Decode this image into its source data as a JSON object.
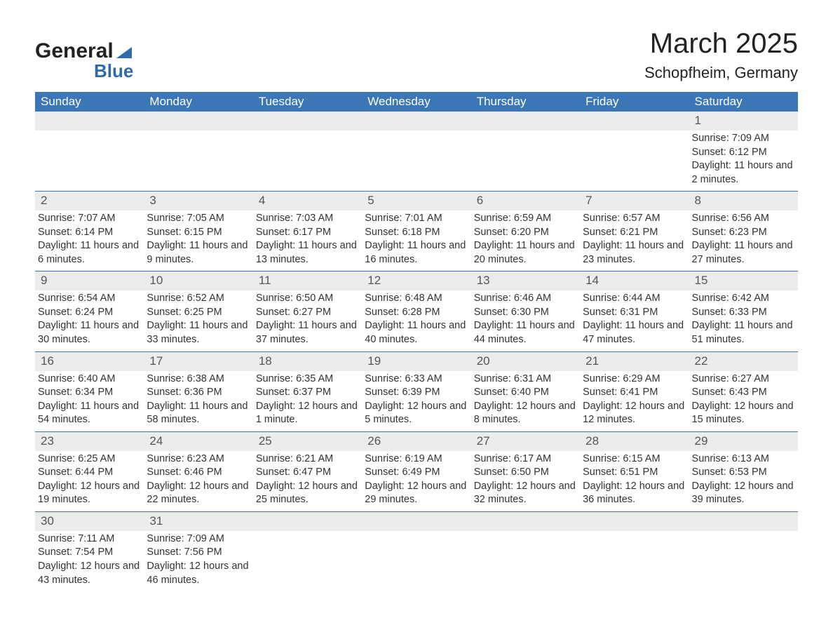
{
  "logo": {
    "line1": "General",
    "line2": "Blue"
  },
  "title": "March 2025",
  "location": "Schopfheim, Germany",
  "colors": {
    "header_bg": "#3b77b7",
    "header_text": "#ffffff",
    "row_divider": "#3b77b7",
    "daynum_bg": "#ececec",
    "text": "#333333",
    "logo_accent": "#2f6aab",
    "background": "#ffffff"
  },
  "typography": {
    "title_fontsize": 40,
    "location_fontsize": 22,
    "weekday_fontsize": 17,
    "daynum_fontsize": 17,
    "cell_fontsize": 14.5
  },
  "layout": {
    "columns": 7,
    "weeks": 6
  },
  "columns": [
    "Sunday",
    "Monday",
    "Tuesday",
    "Wednesday",
    "Thursday",
    "Friday",
    "Saturday"
  ],
  "weeks": [
    [
      null,
      null,
      null,
      null,
      null,
      null,
      {
        "n": "1",
        "sr": "Sunrise: 7:09 AM",
        "ss": "Sunset: 6:12 PM",
        "dl": "Daylight: 11 hours and 2 minutes."
      }
    ],
    [
      {
        "n": "2",
        "sr": "Sunrise: 7:07 AM",
        "ss": "Sunset: 6:14 PM",
        "dl": "Daylight: 11 hours and 6 minutes."
      },
      {
        "n": "3",
        "sr": "Sunrise: 7:05 AM",
        "ss": "Sunset: 6:15 PM",
        "dl": "Daylight: 11 hours and 9 minutes."
      },
      {
        "n": "4",
        "sr": "Sunrise: 7:03 AM",
        "ss": "Sunset: 6:17 PM",
        "dl": "Daylight: 11 hours and 13 minutes."
      },
      {
        "n": "5",
        "sr": "Sunrise: 7:01 AM",
        "ss": "Sunset: 6:18 PM",
        "dl": "Daylight: 11 hours and 16 minutes."
      },
      {
        "n": "6",
        "sr": "Sunrise: 6:59 AM",
        "ss": "Sunset: 6:20 PM",
        "dl": "Daylight: 11 hours and 20 minutes."
      },
      {
        "n": "7",
        "sr": "Sunrise: 6:57 AM",
        "ss": "Sunset: 6:21 PM",
        "dl": "Daylight: 11 hours and 23 minutes."
      },
      {
        "n": "8",
        "sr": "Sunrise: 6:56 AM",
        "ss": "Sunset: 6:23 PM",
        "dl": "Daylight: 11 hours and 27 minutes."
      }
    ],
    [
      {
        "n": "9",
        "sr": "Sunrise: 6:54 AM",
        "ss": "Sunset: 6:24 PM",
        "dl": "Daylight: 11 hours and 30 minutes."
      },
      {
        "n": "10",
        "sr": "Sunrise: 6:52 AM",
        "ss": "Sunset: 6:25 PM",
        "dl": "Daylight: 11 hours and 33 minutes."
      },
      {
        "n": "11",
        "sr": "Sunrise: 6:50 AM",
        "ss": "Sunset: 6:27 PM",
        "dl": "Daylight: 11 hours and 37 minutes."
      },
      {
        "n": "12",
        "sr": "Sunrise: 6:48 AM",
        "ss": "Sunset: 6:28 PM",
        "dl": "Daylight: 11 hours and 40 minutes."
      },
      {
        "n": "13",
        "sr": "Sunrise: 6:46 AM",
        "ss": "Sunset: 6:30 PM",
        "dl": "Daylight: 11 hours and 44 minutes."
      },
      {
        "n": "14",
        "sr": "Sunrise: 6:44 AM",
        "ss": "Sunset: 6:31 PM",
        "dl": "Daylight: 11 hours and 47 minutes."
      },
      {
        "n": "15",
        "sr": "Sunrise: 6:42 AM",
        "ss": "Sunset: 6:33 PM",
        "dl": "Daylight: 11 hours and 51 minutes."
      }
    ],
    [
      {
        "n": "16",
        "sr": "Sunrise: 6:40 AM",
        "ss": "Sunset: 6:34 PM",
        "dl": "Daylight: 11 hours and 54 minutes."
      },
      {
        "n": "17",
        "sr": "Sunrise: 6:38 AM",
        "ss": "Sunset: 6:36 PM",
        "dl": "Daylight: 11 hours and 58 minutes."
      },
      {
        "n": "18",
        "sr": "Sunrise: 6:35 AM",
        "ss": "Sunset: 6:37 PM",
        "dl": "Daylight: 12 hours and 1 minute."
      },
      {
        "n": "19",
        "sr": "Sunrise: 6:33 AM",
        "ss": "Sunset: 6:39 PM",
        "dl": "Daylight: 12 hours and 5 minutes."
      },
      {
        "n": "20",
        "sr": "Sunrise: 6:31 AM",
        "ss": "Sunset: 6:40 PM",
        "dl": "Daylight: 12 hours and 8 minutes."
      },
      {
        "n": "21",
        "sr": "Sunrise: 6:29 AM",
        "ss": "Sunset: 6:41 PM",
        "dl": "Daylight: 12 hours and 12 minutes."
      },
      {
        "n": "22",
        "sr": "Sunrise: 6:27 AM",
        "ss": "Sunset: 6:43 PM",
        "dl": "Daylight: 12 hours and 15 minutes."
      }
    ],
    [
      {
        "n": "23",
        "sr": "Sunrise: 6:25 AM",
        "ss": "Sunset: 6:44 PM",
        "dl": "Daylight: 12 hours and 19 minutes."
      },
      {
        "n": "24",
        "sr": "Sunrise: 6:23 AM",
        "ss": "Sunset: 6:46 PM",
        "dl": "Daylight: 12 hours and 22 minutes."
      },
      {
        "n": "25",
        "sr": "Sunrise: 6:21 AM",
        "ss": "Sunset: 6:47 PM",
        "dl": "Daylight: 12 hours and 25 minutes."
      },
      {
        "n": "26",
        "sr": "Sunrise: 6:19 AM",
        "ss": "Sunset: 6:49 PM",
        "dl": "Daylight: 12 hours and 29 minutes."
      },
      {
        "n": "27",
        "sr": "Sunrise: 6:17 AM",
        "ss": "Sunset: 6:50 PM",
        "dl": "Daylight: 12 hours and 32 minutes."
      },
      {
        "n": "28",
        "sr": "Sunrise: 6:15 AM",
        "ss": "Sunset: 6:51 PM",
        "dl": "Daylight: 12 hours and 36 minutes."
      },
      {
        "n": "29",
        "sr": "Sunrise: 6:13 AM",
        "ss": "Sunset: 6:53 PM",
        "dl": "Daylight: 12 hours and 39 minutes."
      }
    ],
    [
      {
        "n": "30",
        "sr": "Sunrise: 7:11 AM",
        "ss": "Sunset: 7:54 PM",
        "dl": "Daylight: 12 hours and 43 minutes."
      },
      {
        "n": "31",
        "sr": "Sunrise: 7:09 AM",
        "ss": "Sunset: 7:56 PM",
        "dl": "Daylight: 12 hours and 46 minutes."
      },
      null,
      null,
      null,
      null,
      null
    ]
  ]
}
